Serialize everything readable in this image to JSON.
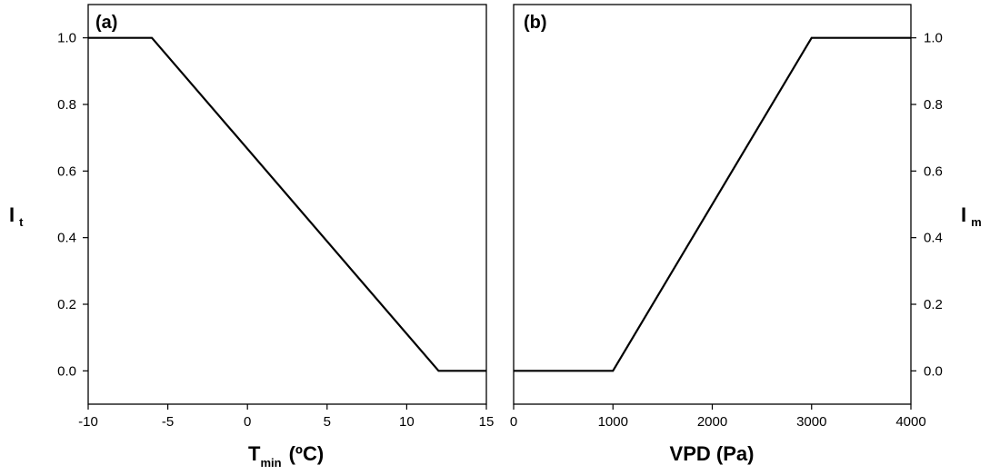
{
  "chart_data": [
    {
      "type": "line",
      "panel_label": "(a)",
      "xlabel": "T",
      "xlabel_sub": "min",
      "xlabel_unit": "(ºC)",
      "ylabel": "I",
      "ylabel_sub": "t",
      "xlim": [
        -10,
        15
      ],
      "ylim": [
        -0.1,
        1.1
      ],
      "xticks": [
        -10,
        -5,
        0,
        5,
        10,
        15
      ],
      "xtick_labels": [
        "-10",
        "-5",
        "0",
        "5",
        "10",
        "15"
      ],
      "yticks": [
        0.0,
        0.2,
        0.4,
        0.6,
        0.8,
        1.0
      ],
      "ytick_labels": [
        "0.0",
        "0.2",
        "0.4",
        "0.6",
        "0.8",
        "1.0"
      ],
      "y_axis_side": "left",
      "grid": false,
      "series": [
        {
          "x": [
            -10,
            -6,
            12,
            15
          ],
          "y": [
            1.0,
            1.0,
            0.0,
            0.0
          ]
        }
      ]
    },
    {
      "type": "line",
      "panel_label": "(b)",
      "xlabel": "VPD (Pa)",
      "ylabel": "I",
      "ylabel_sub": "m",
      "xlim": [
        0,
        4000
      ],
      "ylim": [
        -0.1,
        1.1
      ],
      "xticks": [
        0,
        1000,
        2000,
        3000,
        4000
      ],
      "xtick_labels": [
        "0",
        "1000",
        "2000",
        "3000",
        "4000"
      ],
      "yticks": [
        0.0,
        0.2,
        0.4,
        0.6,
        0.8,
        1.0
      ],
      "ytick_labels": [
        "0.0",
        "0.2",
        "0.4",
        "0.6",
        "0.8",
        "1.0"
      ],
      "y_axis_side": "right",
      "grid": false,
      "series": [
        {
          "x": [
            0,
            1000,
            3000,
            4000
          ],
          "y": [
            0.0,
            0.0,
            1.0,
            1.0
          ]
        }
      ]
    }
  ]
}
